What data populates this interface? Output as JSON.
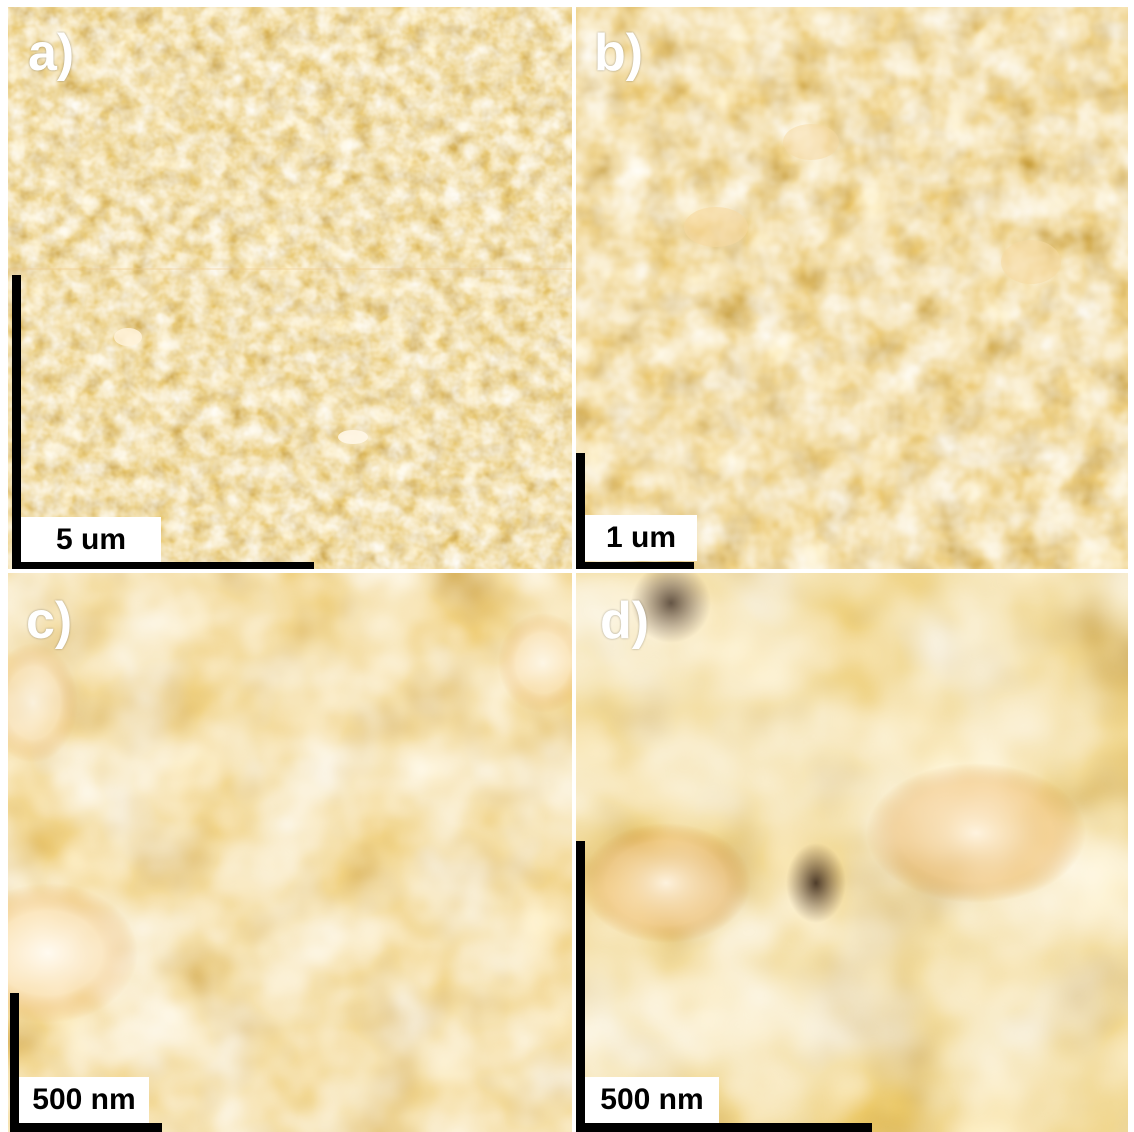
{
  "panels": [
    {
      "id": "a",
      "label": "a)",
      "scale_bar": "5 um"
    },
    {
      "id": "b",
      "label": "b)",
      "scale_bar": "1 um"
    },
    {
      "id": "c",
      "label": "c)",
      "scale_bar": "500 nm"
    },
    {
      "id": "d",
      "label": "d)",
      "scale_bar": "500 nm"
    }
  ],
  "colors": {
    "dark": "#5a2a00",
    "mid": "#b86a12",
    "light": "#f6d8a0",
    "highlight": "#fff2d8",
    "scale_bar": "#000000",
    "label": "#ffffff"
  }
}
